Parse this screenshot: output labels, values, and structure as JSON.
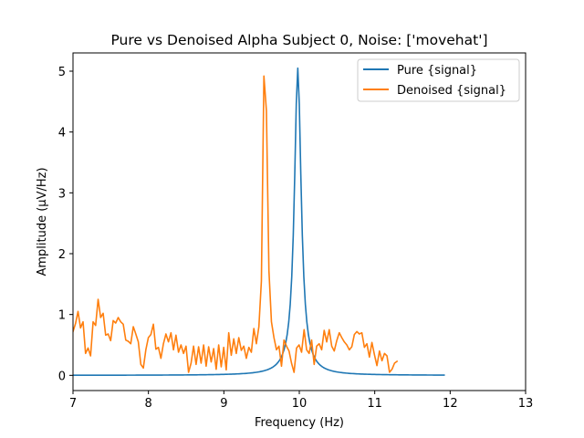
{
  "chart_data": {
    "type": "line",
    "title": "Pure vs Denoised Alpha Subject 0, Noise: ['movehat']",
    "xlabel": "Frequency (Hz)",
    "ylabel": "Amplitude (μV/Hz)",
    "xlim": [
      7,
      13
    ],
    "ylim": [
      -0.25,
      5.3
    ],
    "xticks": [
      7,
      8,
      9,
      10,
      11,
      12,
      13
    ],
    "yticks": [
      0,
      1,
      2,
      3,
      4,
      5
    ],
    "grid": false,
    "legend_position": "top-right",
    "series": [
      {
        "name": "Pure {signal}",
        "color": "#1f77b4",
        "generator": "lorentzian",
        "center": 9.98,
        "peak": 5.05,
        "half_width": 0.055,
        "x_start": 7.0,
        "x_end": 11.92,
        "x_step": 0.02
      },
      {
        "name": "Denoised {signal}",
        "color": "#ff7f0e",
        "x_start": 7.0,
        "x_step": 0.0333,
        "values": [
          0.72,
          0.85,
          1.05,
          0.78,
          0.88,
          0.36,
          0.45,
          0.32,
          0.88,
          0.82,
          1.25,
          0.95,
          1.02,
          0.66,
          0.68,
          0.57,
          0.9,
          0.86,
          0.95,
          0.88,
          0.84,
          0.58,
          0.56,
          0.52,
          0.8,
          0.68,
          0.55,
          0.18,
          0.12,
          0.42,
          0.62,
          0.67,
          0.84,
          0.43,
          0.46,
          0.28,
          0.52,
          0.68,
          0.55,
          0.7,
          0.42,
          0.66,
          0.38,
          0.5,
          0.36,
          0.48,
          0.05,
          0.2,
          0.48,
          0.18,
          0.47,
          0.2,
          0.5,
          0.15,
          0.47,
          0.22,
          0.44,
          0.1,
          0.5,
          0.14,
          0.46,
          0.09,
          0.7,
          0.33,
          0.6,
          0.36,
          0.62,
          0.41,
          0.48,
          0.28,
          0.46,
          0.38,
          0.77,
          0.52,
          0.8,
          1.55,
          4.92,
          4.35,
          1.72,
          0.88,
          0.62,
          0.42,
          0.48,
          0.15,
          0.58,
          0.48,
          0.4,
          0.2,
          0.05,
          0.45,
          0.5,
          0.38,
          0.75,
          0.42,
          0.36,
          0.58,
          0.18,
          0.48,
          0.52,
          0.42,
          0.74,
          0.55,
          0.75,
          0.48,
          0.4,
          0.57,
          0.7,
          0.62,
          0.55,
          0.5,
          0.42,
          0.47,
          0.67,
          0.72,
          0.68,
          0.7,
          0.46,
          0.52,
          0.3,
          0.54,
          0.34,
          0.16,
          0.4,
          0.24,
          0.36,
          0.32,
          0.05,
          0.1,
          0.2,
          0.23
        ]
      }
    ]
  }
}
